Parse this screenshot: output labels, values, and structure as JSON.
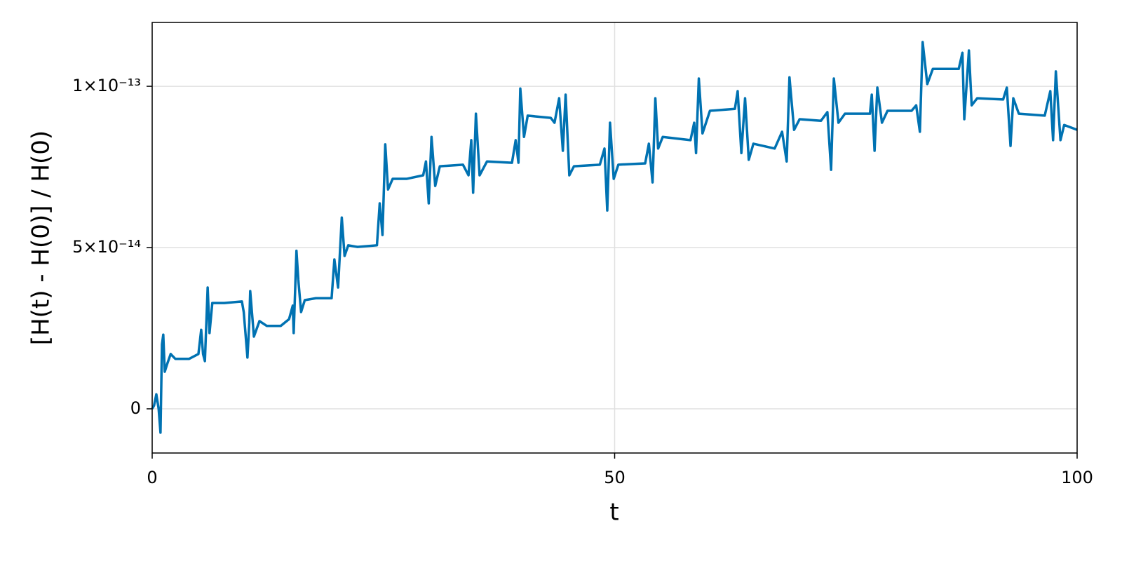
{
  "chart_data": {
    "type": "line",
    "xlabel": "t",
    "ylabel": "[H(t) - H(0)] / H(0)",
    "xlim": [
      0,
      100
    ],
    "ylim": [
      -1.37e-14,
      1.198e-13
    ],
    "xticks": [
      0,
      50,
      100
    ],
    "yticks": [
      0,
      {
        "value": 5e-14,
        "label": "5×10⁻¹⁴"
      },
      {
        "value": 1e-13,
        "label": "1×10⁻¹³"
      }
    ],
    "grid": true,
    "series": [
      {
        "color": "#0072b2",
        "x": [
          0,
          0.2,
          0.45,
          0.7,
          0.9,
          1.06,
          1.2,
          1.36,
          1.6,
          2.0,
          2.5,
          4.0,
          5.0,
          5.3,
          5.5,
          5.7,
          6.0,
          6.2,
          6.5,
          7.8,
          9.7,
          9.9,
          10.3,
          10.5,
          10.6,
          11.0,
          11.6,
          12.4,
          13.9,
          14.8,
          15.2,
          15.3,
          15.6,
          15.8,
          16.1,
          16.5,
          17.7,
          19.4,
          19.7,
          20.1,
          20.5,
          20.8,
          21.2,
          22.2,
          24.3,
          24.6,
          24.9,
          25.2,
          25.5,
          26.0,
          27.5,
          29.3,
          29.6,
          29.9,
          30.2,
          30.6,
          31.1,
          33.6,
          34.2,
          34.5,
          34.7,
          35.0,
          35.4,
          36.2,
          38.9,
          39.3,
          39.6,
          39.8,
          40.2,
          40.6,
          43.1,
          43.5,
          44.0,
          44.4,
          44.7,
          45.1,
          45.6,
          48.4,
          48.9,
          49.2,
          49.5,
          49.9,
          50.4,
          53.3,
          53.7,
          54.1,
          54.4,
          54.7,
          55.2,
          58.2,
          58.6,
          58.8,
          59.1,
          59.5,
          60.3,
          63.0,
          63.3,
          63.7,
          64.1,
          64.5,
          65.0,
          67.3,
          68.1,
          68.6,
          68.9,
          69.4,
          70.0,
          72.3,
          73.0,
          73.4,
          73.7,
          74.2,
          74.9,
          77.6,
          77.8,
          78.1,
          78.4,
          78.9,
          79.5,
          82.1,
          82.6,
          83.0,
          83.3,
          83.8,
          84.4,
          87.2,
          87.6,
          87.8,
          88.3,
          88.6,
          89.2,
          92.0,
          92.4,
          92.8,
          93.1,
          93.7,
          96.5,
          97.1,
          97.4,
          97.7,
          98.2,
          98.6,
          100
        ],
        "values": [
          0,
          1e-15,
          4.5e-15,
          0,
          -7.4e-15,
          2e-14,
          2.3e-14,
          1.15e-14,
          1.37e-14,
          1.7e-14,
          1.55e-14,
          1.55e-14,
          1.7e-14,
          2.45e-14,
          1.7e-14,
          1.48e-14,
          3.76e-14,
          2.35e-14,
          3.28e-14,
          3.28e-14,
          3.33e-14,
          3e-14,
          1.59e-14,
          2.67e-14,
          3.65e-14,
          2.24e-14,
          2.72e-14,
          2.57e-14,
          2.57e-14,
          2.78e-14,
          3.2e-14,
          2.35e-14,
          4.9e-14,
          4e-14,
          3e-14,
          3.37e-14,
          3.43e-14,
          3.43e-14,
          4.63e-14,
          3.76e-14,
          5.93e-14,
          4.74e-14,
          5.07e-14,
          5.02e-14,
          5.07e-14,
          6.37e-14,
          5.39e-14,
          8.2e-14,
          6.8e-14,
          7.13e-14,
          7.13e-14,
          7.24e-14,
          7.67e-14,
          6.37e-14,
          8.43e-14,
          6.91e-14,
          7.52e-14,
          7.57e-14,
          7.24e-14,
          8.33e-14,
          6.7e-14,
          9.15e-14,
          7.24e-14,
          7.67e-14,
          7.63e-14,
          8.33e-14,
          7.63e-14,
          9.93e-14,
          8.43e-14,
          9.09e-14,
          9.02e-14,
          8.87e-14,
          9.63e-14,
          8e-14,
          9.74e-14,
          7.24e-14,
          7.52e-14,
          7.57e-14,
          8.07e-14,
          6.15e-14,
          8.87e-14,
          7.13e-14,
          7.57e-14,
          7.61e-14,
          8.22e-14,
          7.02e-14,
          9.63e-14,
          8.07e-14,
          8.43e-14,
          8.33e-14,
          8.87e-14,
          7.93e-14,
          1.024e-13,
          8.54e-14,
          9.24e-14,
          9.3e-14,
          9.85e-14,
          7.93e-14,
          9.63e-14,
          7.72e-14,
          8.22e-14,
          8.07e-14,
          8.59e-14,
          7.67e-14,
          1.028e-13,
          8.65e-14,
          8.98e-14,
          8.93e-14,
          9.2e-14,
          7.41e-14,
          1.024e-13,
          8.87e-14,
          9.15e-14,
          9.15e-14,
          9.74e-14,
          8e-14,
          9.96e-14,
          8.87e-14,
          9.24e-14,
          9.24e-14,
          9.41e-14,
          8.59e-14,
          1.137e-13,
          1.007e-13,
          1.054e-13,
          1.054e-13,
          1.104e-13,
          8.98e-14,
          1.111e-13,
          9.41e-14,
          9.63e-14,
          9.59e-14,
          9.96e-14,
          8.15e-14,
          9.63e-14,
          9.15e-14,
          9.09e-14,
          9.85e-14,
          8.33e-14,
          1.046e-13,
          8.33e-14,
          8.8e-14,
          8.65e-14
        ]
      }
    ]
  }
}
